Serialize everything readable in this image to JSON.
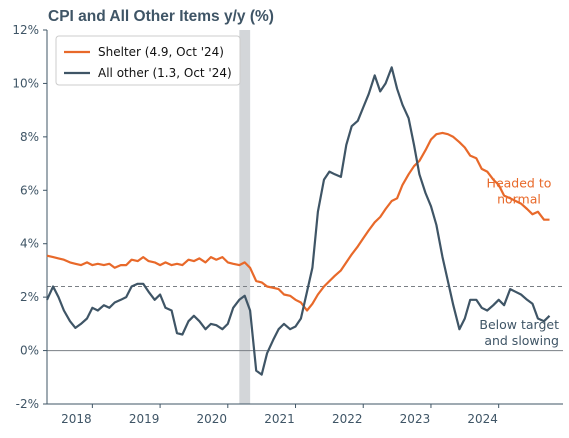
{
  "chart_data": {
    "type": "line",
    "title": "CPI and All Other Items y/y (%)",
    "xlabel": "",
    "ylabel": "",
    "x_range": [
      2017.33,
      2024.95
    ],
    "ylim": [
      -2,
      12
    ],
    "y_ticks": [
      -2,
      0,
      2,
      4,
      6,
      8,
      10,
      12
    ],
    "y_tick_labels": [
      "-2%",
      "0%",
      "2%",
      "4%",
      "6%",
      "8%",
      "10%",
      "12%"
    ],
    "x_ticks": [
      2018,
      2019,
      2020,
      2021,
      2022,
      2023,
      2024
    ],
    "x_tick_labels": [
      "2018",
      "2019",
      "2020",
      "2021",
      "2022",
      "2023",
      "2024"
    ],
    "grid": false,
    "legend_position": "top-left",
    "recession_band": [
      2020.17,
      2020.33
    ],
    "reference_lines": [
      {
        "y": 2.4,
        "style": "dashed",
        "color": "#7a7f85"
      },
      {
        "y": 0,
        "style": "solid",
        "color": "#7a7f85"
      }
    ],
    "series": [
      {
        "name": "Shelter (4.9, Oct '24)",
        "color": "#e8692a",
        "points": [
          [
            2017.33,
            3.55
          ],
          [
            2017.42,
            3.5
          ],
          [
            2017.5,
            3.45
          ],
          [
            2017.58,
            3.4
          ],
          [
            2017.67,
            3.3
          ],
          [
            2017.75,
            3.25
          ],
          [
            2017.83,
            3.2
          ],
          [
            2017.92,
            3.3
          ],
          [
            2018.0,
            3.2
          ],
          [
            2018.08,
            3.25
          ],
          [
            2018.17,
            3.2
          ],
          [
            2018.25,
            3.25
          ],
          [
            2018.33,
            3.1
          ],
          [
            2018.42,
            3.2
          ],
          [
            2018.5,
            3.2
          ],
          [
            2018.58,
            3.4
          ],
          [
            2018.67,
            3.35
          ],
          [
            2018.75,
            3.5
          ],
          [
            2018.83,
            3.35
          ],
          [
            2018.92,
            3.3
          ],
          [
            2019.0,
            3.2
          ],
          [
            2019.08,
            3.3
          ],
          [
            2019.17,
            3.2
          ],
          [
            2019.25,
            3.25
          ],
          [
            2019.33,
            3.2
          ],
          [
            2019.42,
            3.4
          ],
          [
            2019.5,
            3.35
          ],
          [
            2019.58,
            3.45
          ],
          [
            2019.67,
            3.3
          ],
          [
            2019.75,
            3.5
          ],
          [
            2019.83,
            3.4
          ],
          [
            2019.92,
            3.5
          ],
          [
            2020.0,
            3.3
          ],
          [
            2020.08,
            3.25
          ],
          [
            2020.17,
            3.2
          ],
          [
            2020.25,
            3.3
          ],
          [
            2020.33,
            3.1
          ],
          [
            2020.42,
            2.6
          ],
          [
            2020.5,
            2.55
          ],
          [
            2020.58,
            2.4
          ],
          [
            2020.67,
            2.35
          ],
          [
            2020.75,
            2.3
          ],
          [
            2020.83,
            2.1
          ],
          [
            2020.92,
            2.05
          ],
          [
            2021.0,
            1.9
          ],
          [
            2021.08,
            1.8
          ],
          [
            2021.17,
            1.5
          ],
          [
            2021.25,
            1.75
          ],
          [
            2021.33,
            2.1
          ],
          [
            2021.42,
            2.4
          ],
          [
            2021.5,
            2.6
          ],
          [
            2021.58,
            2.8
          ],
          [
            2021.67,
            3.0
          ],
          [
            2021.75,
            3.3
          ],
          [
            2021.83,
            3.6
          ],
          [
            2021.92,
            3.9
          ],
          [
            2022.0,
            4.2
          ],
          [
            2022.08,
            4.5
          ],
          [
            2022.17,
            4.8
          ],
          [
            2022.25,
            5.0
          ],
          [
            2022.33,
            5.3
          ],
          [
            2022.42,
            5.6
          ],
          [
            2022.5,
            5.7
          ],
          [
            2022.58,
            6.2
          ],
          [
            2022.67,
            6.6
          ],
          [
            2022.75,
            6.9
          ],
          [
            2022.83,
            7.1
          ],
          [
            2022.92,
            7.5
          ],
          [
            2023.0,
            7.9
          ],
          [
            2023.08,
            8.1
          ],
          [
            2023.17,
            8.15
          ],
          [
            2023.25,
            8.1
          ],
          [
            2023.33,
            8.0
          ],
          [
            2023.42,
            7.8
          ],
          [
            2023.5,
            7.6
          ],
          [
            2023.58,
            7.3
          ],
          [
            2023.67,
            7.2
          ],
          [
            2023.75,
            6.8
          ],
          [
            2023.83,
            6.7
          ],
          [
            2023.92,
            6.4
          ],
          [
            2024.0,
            6.2
          ],
          [
            2024.08,
            5.8
          ],
          [
            2024.17,
            5.7
          ],
          [
            2024.25,
            5.6
          ],
          [
            2024.33,
            5.5
          ],
          [
            2024.42,
            5.3
          ],
          [
            2024.5,
            5.1
          ],
          [
            2024.58,
            5.2
          ],
          [
            2024.67,
            4.9
          ],
          [
            2024.75,
            4.9
          ]
        ]
      },
      {
        "name": "All other (1.3, Oct '24)",
        "color": "#3f5566",
        "points": [
          [
            2017.33,
            1.9
          ],
          [
            2017.42,
            2.4
          ],
          [
            2017.5,
            2.0
          ],
          [
            2017.58,
            1.5
          ],
          [
            2017.67,
            1.1
          ],
          [
            2017.75,
            0.85
          ],
          [
            2017.83,
            1.0
          ],
          [
            2017.92,
            1.2
          ],
          [
            2018.0,
            1.6
          ],
          [
            2018.08,
            1.5
          ],
          [
            2018.17,
            1.7
          ],
          [
            2018.25,
            1.6
          ],
          [
            2018.33,
            1.8
          ],
          [
            2018.42,
            1.9
          ],
          [
            2018.5,
            2.0
          ],
          [
            2018.58,
            2.4
          ],
          [
            2018.67,
            2.5
          ],
          [
            2018.75,
            2.5
          ],
          [
            2018.83,
            2.2
          ],
          [
            2018.92,
            1.9
          ],
          [
            2019.0,
            2.1
          ],
          [
            2019.08,
            1.6
          ],
          [
            2019.17,
            1.5
          ],
          [
            2019.25,
            0.65
          ],
          [
            2019.33,
            0.6
          ],
          [
            2019.42,
            1.1
          ],
          [
            2019.5,
            1.3
          ],
          [
            2019.58,
            1.1
          ],
          [
            2019.67,
            0.8
          ],
          [
            2019.75,
            1.0
          ],
          [
            2019.83,
            0.95
          ],
          [
            2019.92,
            0.8
          ],
          [
            2020.0,
            1.0
          ],
          [
            2020.08,
            1.6
          ],
          [
            2020.17,
            1.9
          ],
          [
            2020.25,
            2.05
          ],
          [
            2020.33,
            1.5
          ],
          [
            2020.42,
            -0.75
          ],
          [
            2020.5,
            -0.9
          ],
          [
            2020.58,
            -0.1
          ],
          [
            2020.67,
            0.4
          ],
          [
            2020.75,
            0.8
          ],
          [
            2020.83,
            1.0
          ],
          [
            2020.92,
            0.8
          ],
          [
            2021.0,
            0.9
          ],
          [
            2021.08,
            1.2
          ],
          [
            2021.17,
            2.2
          ],
          [
            2021.25,
            3.1
          ],
          [
            2021.33,
            5.2
          ],
          [
            2021.42,
            6.4
          ],
          [
            2021.5,
            6.7
          ],
          [
            2021.58,
            6.6
          ],
          [
            2021.67,
            6.5
          ],
          [
            2021.75,
            7.7
          ],
          [
            2021.83,
            8.4
          ],
          [
            2021.92,
            8.6
          ],
          [
            2022.0,
            9.1
          ],
          [
            2022.08,
            9.6
          ],
          [
            2022.17,
            10.3
          ],
          [
            2022.25,
            9.7
          ],
          [
            2022.33,
            10.0
          ],
          [
            2022.42,
            10.6
          ],
          [
            2022.5,
            9.8
          ],
          [
            2022.58,
            9.2
          ],
          [
            2022.67,
            8.7
          ],
          [
            2022.75,
            7.7
          ],
          [
            2022.83,
            6.6
          ],
          [
            2022.92,
            5.9
          ],
          [
            2023.0,
            5.4
          ],
          [
            2023.08,
            4.7
          ],
          [
            2023.17,
            3.5
          ],
          [
            2023.25,
            2.6
          ],
          [
            2023.33,
            1.7
          ],
          [
            2023.42,
            0.8
          ],
          [
            2023.5,
            1.2
          ],
          [
            2023.58,
            1.9
          ],
          [
            2023.67,
            1.9
          ],
          [
            2023.75,
            1.6
          ],
          [
            2023.83,
            1.5
          ],
          [
            2023.92,
            1.7
          ],
          [
            2024.0,
            1.9
          ],
          [
            2024.08,
            1.7
          ],
          [
            2024.17,
            2.3
          ],
          [
            2024.25,
            2.2
          ],
          [
            2024.33,
            2.1
          ],
          [
            2024.42,
            1.9
          ],
          [
            2024.5,
            1.75
          ],
          [
            2024.58,
            1.2
          ],
          [
            2024.67,
            1.1
          ],
          [
            2024.75,
            1.3
          ]
        ]
      }
    ],
    "annotations": [
      {
        "lines": [
          "Headed to",
          "normal"
        ],
        "color": "#e8692a",
        "x": 2024.3,
        "y": 6.1
      },
      {
        "lines": [
          "Below target",
          "and slowing"
        ],
        "color": "#3f5566",
        "x": 2024.5,
        "y": 0.8
      }
    ]
  }
}
